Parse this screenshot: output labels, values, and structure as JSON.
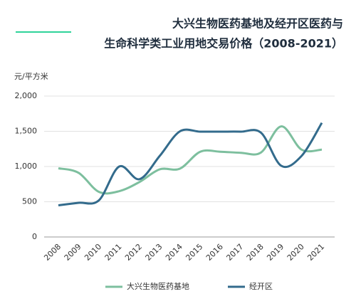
{
  "chart_data": {
    "type": "line",
    "title_lines": [
      "大兴生物医药基地及经开区医药与",
      "生命科学类工业用地交易价格（2008-2021）"
    ],
    "y_label": "元/平方米",
    "categories": [
      "2008",
      "2009",
      "2010",
      "2011",
      "2012",
      "2013",
      "2014",
      "2015",
      "2016",
      "2017",
      "2018",
      "2019",
      "2020",
      "2021"
    ],
    "series": [
      {
        "name": "大兴生物医药基地",
        "color": "#7dbf9e",
        "values": [
          975,
          910,
          640,
          650,
          780,
          960,
          970,
          1210,
          1210,
          1195,
          1200,
          1570,
          1240,
          1240
        ]
      },
      {
        "name": "经开区",
        "color": "#336b8c",
        "values": [
          450,
          485,
          520,
          1000,
          820,
          1150,
          1500,
          1495,
          1495,
          1495,
          1480,
          1010,
          1150,
          1620
        ]
      }
    ],
    "ylim": [
      0,
      2000
    ],
    "yticks": [
      0,
      500,
      {
        "value": 1000,
        "label": "1,000"
      },
      {
        "value": 1500,
        "label": "1,500"
      },
      {
        "value": 2000,
        "label": "2,000"
      }
    ],
    "grid": true
  }
}
